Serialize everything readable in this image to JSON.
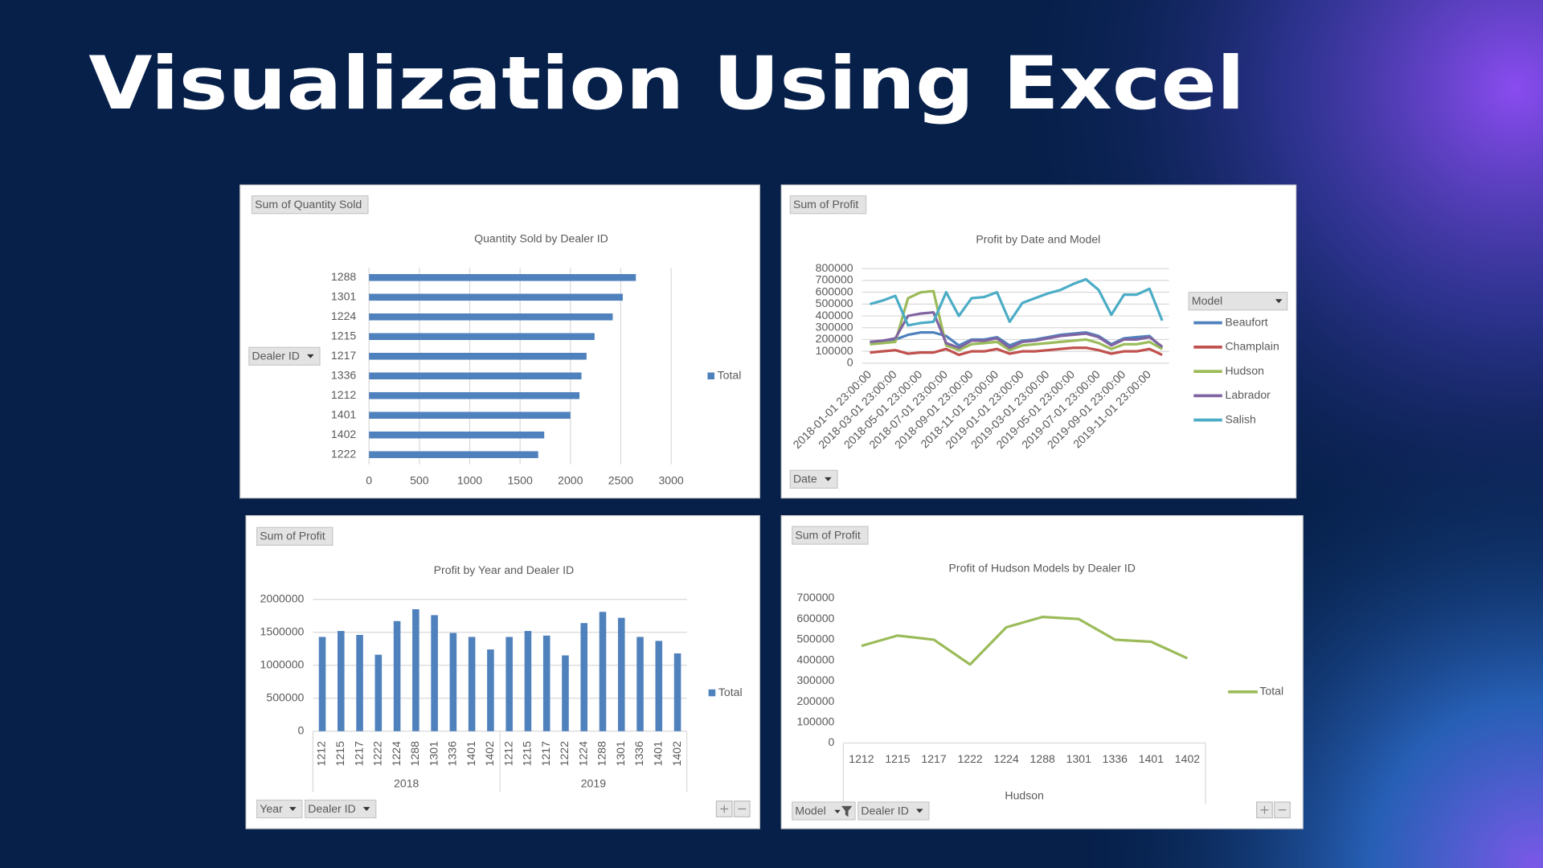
{
  "title": "Visualization Using Excel",
  "chart_data": [
    {
      "type": "bar",
      "orientation": "horizontal",
      "title": "Quantity Sold by Dealer ID",
      "buttons": [
        "Sum of Quantity Sold",
        "Dealer ID"
      ],
      "categories": [
        "1288",
        "1301",
        "1224",
        "1215",
        "1217",
        "1336",
        "1212",
        "1401",
        "1402",
        "1222"
      ],
      "series": [
        {
          "name": "Total",
          "color": "#4f81bd",
          "values": [
            2650,
            2520,
            2420,
            2240,
            2160,
            2110,
            2090,
            2000,
            1740,
            1680
          ]
        }
      ],
      "xlim": [
        0,
        3000
      ],
      "xticks": [
        0,
        500,
        1000,
        1500,
        2000,
        2500,
        3000
      ],
      "grid": true,
      "legend": "right"
    },
    {
      "type": "line",
      "title": "Profit by Date and Model",
      "buttons": [
        "Sum of Profit",
        "Date"
      ],
      "legend_title": "Model",
      "categories": [
        "2018-01-01 23:00:00",
        null,
        "2018-03-01 23:00:00",
        null,
        "2018-05-01 23:00:00",
        null,
        "2018-07-01 23:00:00",
        null,
        "2018-09-01 23:00:00",
        null,
        "2018-11-01 23:00:00",
        null,
        "2019-01-01 23:00:00",
        null,
        "2019-03-01 23:00:00",
        null,
        "2019-05-01 23:00:00",
        null,
        "2019-07-01 23:00:00",
        null,
        "2019-09-01 23:00:00",
        null,
        "2019-11-01 23:00:00",
        null
      ],
      "series": [
        {
          "name": "Beaufort",
          "color": "#4f81bd",
          "values": [
            170000,
            180000,
            200000,
            240000,
            260000,
            260000,
            230000,
            150000,
            200000,
            200000,
            220000,
            150000,
            190000,
            200000,
            220000,
            240000,
            250000,
            260000,
            230000,
            160000,
            210000,
            220000,
            230000,
            130000
          ]
        },
        {
          "name": "Champlain",
          "color": "#c0504d",
          "values": [
            90000,
            100000,
            110000,
            80000,
            90000,
            90000,
            120000,
            70000,
            100000,
            100000,
            120000,
            80000,
            100000,
            100000,
            110000,
            120000,
            130000,
            130000,
            110000,
            80000,
            100000,
            100000,
            120000,
            70000
          ]
        },
        {
          "name": "Hudson",
          "color": "#9bbb59",
          "values": [
            160000,
            170000,
            180000,
            550000,
            600000,
            610000,
            150000,
            110000,
            160000,
            170000,
            180000,
            110000,
            150000,
            160000,
            170000,
            180000,
            190000,
            200000,
            170000,
            120000,
            160000,
            160000,
            180000,
            120000
          ]
        },
        {
          "name": "Labrador",
          "color": "#8064a2",
          "values": [
            180000,
            190000,
            210000,
            400000,
            420000,
            430000,
            170000,
            130000,
            190000,
            190000,
            210000,
            130000,
            180000,
            190000,
            210000,
            230000,
            240000,
            250000,
            220000,
            150000,
            200000,
            200000,
            220000,
            140000
          ]
        },
        {
          "name": "Salish",
          "color": "#4bacc6",
          "values": [
            500000,
            530000,
            570000,
            320000,
            340000,
            350000,
            600000,
            400000,
            550000,
            560000,
            600000,
            350000,
            510000,
            550000,
            590000,
            620000,
            670000,
            710000,
            620000,
            410000,
            580000,
            580000,
            630000,
            360000
          ]
        }
      ],
      "ylim": [
        0,
        800000
      ],
      "yticks": [
        0,
        100000,
        200000,
        300000,
        400000,
        500000,
        600000,
        700000,
        800000
      ],
      "grid": true,
      "legend": "right"
    },
    {
      "type": "bar",
      "orientation": "vertical",
      "title": "Profit by Year and Dealer ID",
      "buttons": [
        "Sum of Profit",
        "Year",
        "Dealer ID"
      ],
      "groups": [
        "2018",
        "2019"
      ],
      "categories": [
        "1212",
        "1215",
        "1217",
        "1222",
        "1224",
        "1288",
        "1301",
        "1336",
        "1401",
        "1402",
        "1212",
        "1215",
        "1217",
        "1222",
        "1224",
        "1288",
        "1301",
        "1336",
        "1401",
        "1402"
      ],
      "series": [
        {
          "name": "Total",
          "color": "#4f81bd",
          "values": [
            1430000,
            1520000,
            1460000,
            1160000,
            1670000,
            1850000,
            1760000,
            1490000,
            1430000,
            1240000,
            1430000,
            1520000,
            1450000,
            1150000,
            1640000,
            1810000,
            1720000,
            1430000,
            1370000,
            1180000
          ]
        }
      ],
      "ylim": [
        0,
        2000000
      ],
      "yticks": [
        0,
        500000,
        1000000,
        1500000,
        2000000
      ],
      "grid": true,
      "legend": "right"
    },
    {
      "type": "line",
      "title": "Profit of Hudson Models by Dealer ID",
      "buttons": [
        "Sum of Profit",
        "Model",
        "Dealer ID"
      ],
      "groups": [
        "Hudson"
      ],
      "categories": [
        "1212",
        "1215",
        "1217",
        "1222",
        "1224",
        "1288",
        "1301",
        "1336",
        "1401",
        "1402"
      ],
      "series": [
        {
          "name": "Total",
          "color": "#9bbb59",
          "values": [
            470000,
            520000,
            500000,
            380000,
            560000,
            610000,
            600000,
            500000,
            490000,
            410000
          ]
        }
      ],
      "ylim": [
        0,
        700000
      ],
      "yticks": [
        0,
        100000,
        200000,
        300000,
        400000,
        500000,
        600000,
        700000
      ],
      "grid": false,
      "legend": "right"
    }
  ]
}
